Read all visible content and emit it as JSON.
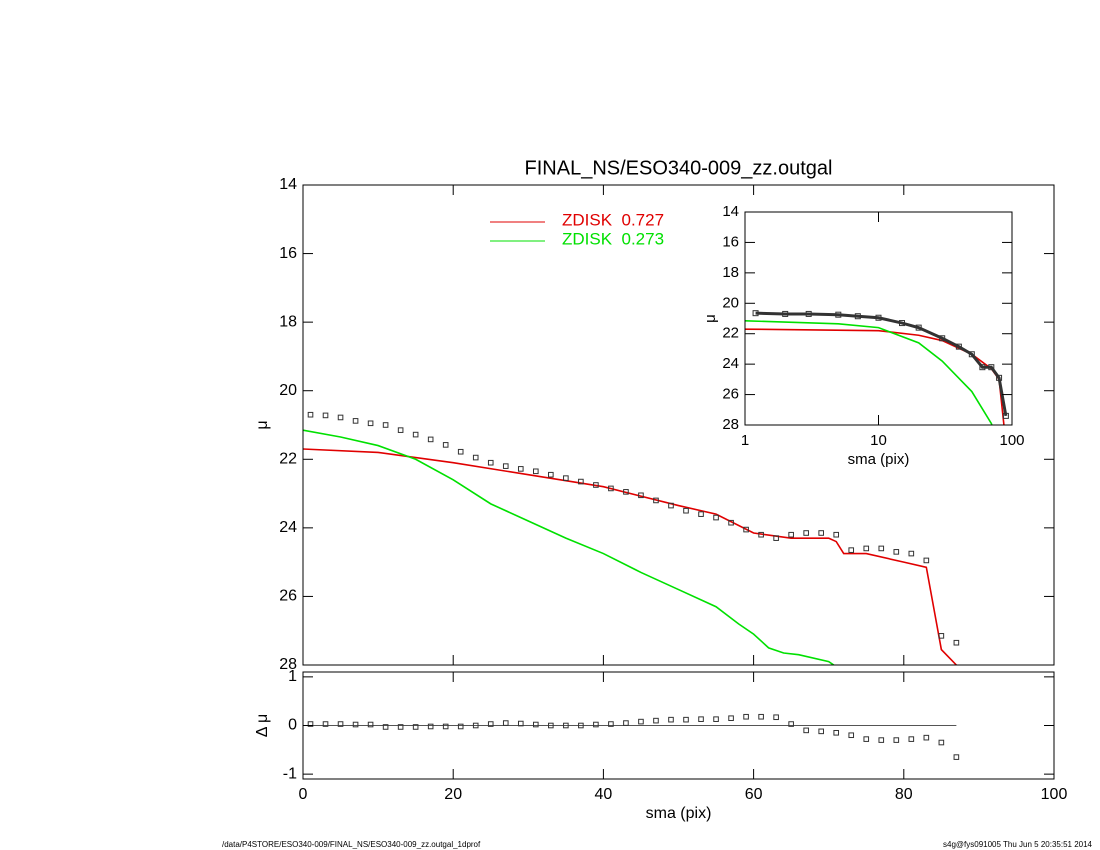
{
  "chart_data": [
    {
      "type": "line",
      "title": "FINAL_NS/ESO340-009_zz.outgal",
      "ylabel": "μ",
      "xlim": [
        0,
        100
      ],
      "xticks": [
        0,
        20,
        40,
        60,
        80,
        100
      ],
      "ylim": [
        28,
        14
      ],
      "yticks": [
        14,
        16,
        18,
        20,
        22,
        24,
        26,
        28
      ],
      "legend": "top-center",
      "series": [
        {
          "name": "ZDISK  0.727",
          "color": "#e00000",
          "x": [
            0,
            10,
            20,
            30,
            40,
            50,
            55,
            60,
            65,
            70,
            71,
            72,
            75,
            80,
            83,
            85,
            87
          ],
          "values": [
            21.7,
            21.8,
            22.1,
            22.45,
            22.8,
            23.35,
            23.6,
            24.15,
            24.3,
            24.3,
            24.4,
            24.75,
            24.75,
            25.0,
            25.15,
            27.55,
            28.0
          ]
        },
        {
          "name": "ZDISK  0.273",
          "color": "#00e000",
          "x": [
            0,
            5,
            10,
            15,
            20,
            25,
            30,
            35,
            40,
            45,
            50,
            55,
            58,
            60,
            62,
            64,
            66,
            70,
            71
          ],
          "values": [
            21.15,
            21.35,
            21.6,
            22.0,
            22.6,
            23.3,
            23.8,
            24.3,
            24.75,
            25.3,
            25.8,
            26.3,
            26.8,
            27.1,
            27.5,
            27.65,
            27.7,
            27.9,
            28.05
          ]
        },
        {
          "color": "#333333",
          "marker": "square",
          "x": [
            1,
            3,
            5,
            7,
            9,
            11,
            13,
            15,
            17,
            19,
            21,
            23,
            25,
            27,
            29,
            31,
            33,
            35,
            37,
            39,
            41,
            43,
            45,
            47,
            49,
            51,
            53,
            55,
            57,
            59,
            61,
            63,
            65,
            67,
            69,
            71,
            73,
            75,
            77,
            79,
            81,
            83,
            85,
            87
          ],
          "values": [
            20.7,
            20.72,
            20.78,
            20.88,
            20.95,
            21.0,
            21.15,
            21.28,
            21.42,
            21.58,
            21.78,
            21.95,
            22.1,
            22.2,
            22.28,
            22.35,
            22.45,
            22.55,
            22.65,
            22.75,
            22.85,
            22.95,
            23.05,
            23.2,
            23.35,
            23.5,
            23.6,
            23.7,
            23.85,
            24.05,
            24.2,
            24.3,
            24.2,
            24.15,
            24.15,
            24.2,
            24.65,
            24.6,
            24.6,
            24.7,
            24.75,
            24.95,
            27.15,
            27.35
          ]
        }
      ]
    },
    {
      "type": "line",
      "xlabel": "sma (pix)",
      "ylabel": "μ",
      "xlog": true,
      "xlim": [
        1,
        100
      ],
      "xticks": [
        1,
        10,
        100
      ],
      "ylim": [
        28,
        14
      ],
      "yticks": [
        14,
        16,
        18,
        20,
        22,
        24,
        26,
        28
      ],
      "series": [
        {
          "color": "#e00000",
          "x": [
            1,
            10,
            20,
            30,
            50,
            70,
            80,
            87
          ],
          "values": [
            21.7,
            21.8,
            22.1,
            22.45,
            23.35,
            24.3,
            25.0,
            28.0
          ]
        },
        {
          "color": "#00e000",
          "x": [
            1,
            5,
            10,
            20,
            30,
            50,
            70,
            71
          ],
          "values": [
            21.15,
            21.35,
            21.6,
            22.6,
            23.8,
            25.8,
            27.9,
            28.05
          ]
        },
        {
          "color": "#333333",
          "marker": "square",
          "line": true,
          "x": [
            1.2,
            2,
            3,
            5,
            7,
            10,
            15,
            20,
            30,
            40,
            50,
            60,
            70,
            80,
            90
          ],
          "values": [
            20.65,
            20.7,
            20.7,
            20.75,
            20.85,
            20.95,
            21.3,
            21.6,
            22.3,
            22.85,
            23.35,
            24.2,
            24.2,
            24.9,
            27.4
          ]
        }
      ]
    },
    {
      "type": "scatter",
      "xlabel": "sma (pix)",
      "ylabel": "Δ μ",
      "xlim": [
        0,
        100
      ],
      "xticks": [
        0,
        20,
        40,
        60,
        80,
        100
      ],
      "ylim": [
        -1.1,
        1.1
      ],
      "yticks": [
        -1,
        0,
        1
      ],
      "series": [
        {
          "color": "#333333",
          "marker": "square",
          "x": [
            1,
            3,
            5,
            7,
            9,
            11,
            13,
            15,
            17,
            19,
            21,
            23,
            25,
            27,
            29,
            31,
            33,
            35,
            37,
            39,
            41,
            43,
            45,
            47,
            49,
            51,
            53,
            55,
            57,
            59,
            61,
            63,
            65,
            67,
            69,
            71,
            73,
            75,
            77,
            79,
            81,
            83,
            85,
            87
          ],
          "values": [
            0.03,
            0.03,
            0.03,
            0.02,
            0.02,
            -0.03,
            -0.03,
            -0.03,
            -0.02,
            -0.02,
            -0.02,
            0.0,
            0.03,
            0.05,
            0.04,
            0.02,
            0.0,
            0.0,
            0.0,
            0.02,
            0.03,
            0.05,
            0.08,
            0.1,
            0.12,
            0.12,
            0.13,
            0.13,
            0.15,
            0.18,
            0.18,
            0.17,
            0.03,
            -0.1,
            -0.12,
            -0.15,
            -0.2,
            -0.28,
            -0.3,
            -0.3,
            -0.28,
            -0.25,
            -0.35,
            -0.65
          ]
        }
      ]
    }
  ],
  "footer": {
    "left": "/data/P4STORE/ESO340-009/FINAL_NS/ESO340-009_zz.outgal_1dprof",
    "right": "s4g@fys091005  Thu Jun  5 20:35:51 2014"
  }
}
